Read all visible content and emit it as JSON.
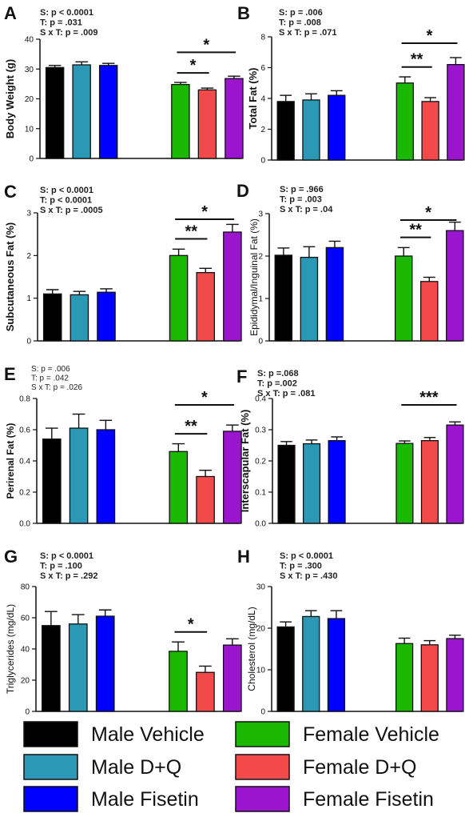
{
  "series_colors": {
    "Male Vehicle": "#000000",
    "Male D+Q": "#2b98b6",
    "Male Fisetin": "#0000ff",
    "Female Vehicle": "#1ab800",
    "Female D+Q": "#f24a4a",
    "Female Fisetin": "#9b15cf"
  },
  "legend": {
    "items": [
      {
        "name": "Male Vehicle",
        "color": "#000000"
      },
      {
        "name": "Female Vehicle",
        "color": "#1ab800"
      },
      {
        "name": "Male D+Q",
        "color": "#2b98b6"
      },
      {
        "name": "Female D+Q",
        "color": "#f24a4a"
      },
      {
        "name": "Male Fisetin",
        "color": "#0000ff"
      },
      {
        "name": "Female Fisetin",
        "color": "#9b15cf"
      }
    ]
  },
  "chart_data": [
    {
      "panel": "A",
      "type": "bar",
      "ylabel": "Body Weight (g)",
      "ylim": [
        0,
        40
      ],
      "yticks": [
        "0",
        "10",
        "20",
        "30",
        "40"
      ],
      "stats": [
        "S: p < 0.0001",
        "T: p = .031",
        "S x T: p = .009"
      ],
      "categories": [
        "Male Vehicle",
        "Male D+Q",
        "Male Fisetin",
        "Female Vehicle",
        "Female D+Q",
        "Female Fisetin"
      ],
      "values": [
        30.5,
        31.4,
        31.2,
        24.8,
        23.0,
        26.8
      ],
      "errors": [
        0.7,
        1.0,
        0.7,
        0.7,
        0.6,
        0.8
      ],
      "significance": [
        {
          "from": 3,
          "to": 4,
          "label": "*"
        },
        {
          "from": 3,
          "to": 5,
          "label": "*"
        }
      ]
    },
    {
      "panel": "B",
      "type": "bar",
      "ylabel": "Total Fat (%)",
      "ylim": [
        0,
        8
      ],
      "yticks": [
        "0",
        "2",
        "4",
        "6",
        "8"
      ],
      "stats": [
        "S: p = .006",
        "T: p = .008",
        "S x T: p = .071"
      ],
      "categories": [
        "Male Vehicle",
        "Male D+Q",
        "Male Fisetin",
        "Female Vehicle",
        "Female D+Q",
        "Female Fisetin"
      ],
      "values": [
        3.8,
        3.9,
        4.2,
        5.0,
        3.8,
        6.2
      ],
      "errors": [
        0.4,
        0.4,
        0.3,
        0.4,
        0.25,
        0.45
      ],
      "significance": [
        {
          "from": 3,
          "to": 4,
          "label": "**"
        },
        {
          "from": 3,
          "to": 5,
          "label": "*"
        }
      ]
    },
    {
      "panel": "C",
      "type": "bar",
      "ylabel": "Subcutaneous Fat (%)",
      "ylim": [
        0,
        3
      ],
      "yticks": [
        "0",
        "1",
        "2",
        "3"
      ],
      "stats": [
        "S: p < 0.0001",
        "T: p < 0.0001",
        "S x T: p = .0005"
      ],
      "categories": [
        "Male Vehicle",
        "Male D+Q",
        "Male Fisetin",
        "Female Vehicle",
        "Female D+Q",
        "Female Fisetin"
      ],
      "values": [
        1.1,
        1.08,
        1.14,
        2.0,
        1.6,
        2.55
      ],
      "errors": [
        0.1,
        0.08,
        0.08,
        0.15,
        0.1,
        0.18
      ],
      "significance": [
        {
          "from": 3,
          "to": 4,
          "label": "**"
        },
        {
          "from": 3,
          "to": 5,
          "label": "*"
        }
      ]
    },
    {
      "panel": "D",
      "type": "bar",
      "ylabel": "Epididymal/Inguinal Fat (%)",
      "ylim": [
        0,
        3
      ],
      "yticks": [
        "0",
        "1",
        "2",
        "3"
      ],
      "stats": [
        "S: p = .966",
        "T: p = .003",
        "S x T: p = .04"
      ],
      "categories": [
        "Male Vehicle",
        "Male D+Q",
        "Male Fisetin",
        "Female Vehicle",
        "Female D+Q",
        "Female Fisetin"
      ],
      "values": [
        2.02,
        1.97,
        2.2,
        2.0,
        1.4,
        2.6
      ],
      "errors": [
        0.17,
        0.25,
        0.15,
        0.2,
        0.1,
        0.2
      ],
      "significance": [
        {
          "from": 3,
          "to": 4,
          "label": "**"
        },
        {
          "from": 3,
          "to": 5,
          "label": "*"
        }
      ]
    },
    {
      "panel": "E",
      "type": "bar",
      "ylabel": "Perirenal Fat (%)",
      "ylim": [
        0,
        0.8
      ],
      "yticks": [
        "0.0",
        "0.2",
        "0.4",
        "0.6",
        "0.8"
      ],
      "stats": [
        "S: p = .006",
        "T: p = .042",
        "S x T: p = .026"
      ],
      "categories": [
        "Male Vehicle",
        "Male D+Q",
        "Male Fisetin",
        "Female Vehicle",
        "Female D+Q",
        "Female Fisetin"
      ],
      "values": [
        0.54,
        0.61,
        0.6,
        0.46,
        0.3,
        0.59
      ],
      "errors": [
        0.07,
        0.09,
        0.06,
        0.05,
        0.04,
        0.04
      ],
      "significance": [
        {
          "from": 3,
          "to": 4,
          "label": "**"
        },
        {
          "from": 3,
          "to": 5,
          "label": "*"
        }
      ]
    },
    {
      "panel": "F",
      "type": "bar",
      "ylabel": "Interscapular Fat (%)",
      "ylim": [
        0,
        0.4
      ],
      "yticks": [
        "0.0",
        "0.1",
        "0.2",
        "0.3",
        "0.4"
      ],
      "stats": [
        "S: p =.068",
        "T: p =.002",
        "S x T: p = .081"
      ],
      "categories": [
        "Male Vehicle",
        "Male D+Q",
        "Male Fisetin",
        "Female Vehicle",
        "Female D+Q",
        "Female Fisetin"
      ],
      "values": [
        0.25,
        0.255,
        0.265,
        0.256,
        0.265,
        0.315
      ],
      "errors": [
        0.012,
        0.012,
        0.012,
        0.008,
        0.01,
        0.01
      ],
      "significance": [
        {
          "from": 3,
          "to": 5,
          "label": "***"
        }
      ]
    },
    {
      "panel": "G",
      "type": "bar",
      "ylabel": "Triglycerides (mg/dL)",
      "ylim": [
        0,
        80
      ],
      "yticks": [
        "0",
        "20",
        "40",
        "60",
        "80"
      ],
      "stats": [
        "S: p < 0.0001",
        "T: p = .100",
        "S x T: p = .292"
      ],
      "categories": [
        "Male Vehicle",
        "Male D+Q",
        "Male Fisetin",
        "Female Vehicle",
        "Female D+Q",
        "Female Fisetin"
      ],
      "values": [
        55,
        56,
        61,
        38.5,
        25,
        42.5
      ],
      "errors": [
        9,
        6,
        4,
        6,
        4,
        4
      ],
      "significance": [
        {
          "from": 3,
          "to": 4,
          "label": "*"
        }
      ]
    },
    {
      "panel": "H",
      "type": "bar",
      "ylabel": "Cholesterol (mg/dL)",
      "ylim": [
        0,
        30
      ],
      "yticks": [
        "0",
        "10",
        "20",
        "30"
      ],
      "stats": [
        "S: p < 0.0001",
        "T: p = .300",
        "S x T: p = .430"
      ],
      "categories": [
        "Male Vehicle",
        "Male D+Q",
        "Male Fisetin",
        "Female Vehicle",
        "Female D+Q",
        "Female Fisetin"
      ],
      "values": [
        20.3,
        22.8,
        22.3,
        16.3,
        16.0,
        17.5
      ],
      "errors": [
        1.2,
        1.4,
        1.9,
        1.3,
        1.0,
        0.8
      ],
      "significance": []
    }
  ]
}
